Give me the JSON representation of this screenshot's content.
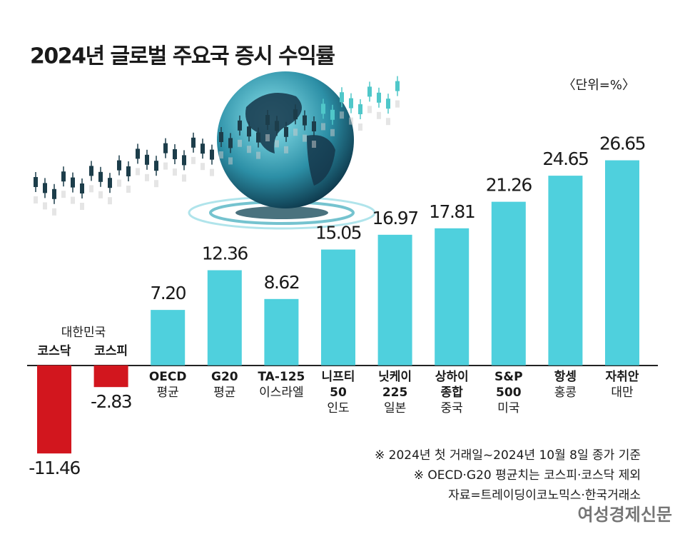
{
  "chart_data": {
    "type": "bar",
    "title": "2024년 글로벌 주요국 증시 수익률",
    "unit_label": "〈단위=%〉",
    "group_label": "대한민국",
    "categories": [
      [
        "코스닥"
      ],
      [
        "코스피"
      ],
      [
        "OECD"
      ],
      [
        "G20"
      ],
      [
        "TA-125"
      ],
      [
        "니프티",
        "50"
      ],
      [
        "닛케이",
        "225"
      ],
      [
        "상하이",
        "종합"
      ],
      [
        "S&P",
        "500"
      ],
      [
        "항셍"
      ],
      [
        "자취안"
      ]
    ],
    "countries": [
      null,
      null,
      "평균",
      "평균",
      "이스라엘",
      "인도",
      "일본",
      "중국",
      "미국",
      "홍콩",
      "대만"
    ],
    "values": [
      -11.46,
      -2.83,
      7.2,
      12.36,
      8.62,
      15.05,
      16.97,
      17.81,
      21.26,
      24.65,
      26.65
    ],
    "value_labels": [
      "-11.46",
      "-2.83",
      "7.20",
      "12.36",
      "8.62",
      "15.05",
      "16.97",
      "17.81",
      "21.26",
      "24.65",
      "26.65"
    ],
    "colors": {
      "negative": "#d2161e",
      "positive": "#4fd0dd"
    },
    "ylim": [
      -12,
      28
    ],
    "notes": [
      "※ 2024년 첫 거래일~2024년 10월 8일 종가 기준",
      "※ OECD·G20 평균치는 코스피·코스닥 제외",
      "자료=트레이딩이코노믹스·한국거래소"
    ],
    "watermark": "여성경제신문"
  }
}
